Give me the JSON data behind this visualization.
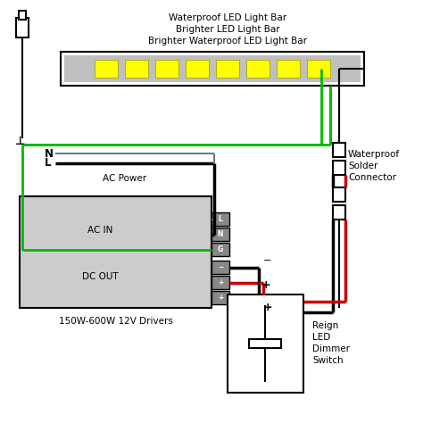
{
  "bg_color": "#ffffff",
  "line_color": "#000000",
  "green_color": "#00bb00",
  "red_color": "#cc0000",
  "led_bar_fill": "#c0c0c0",
  "led_color": "#ffff00",
  "driver_fill": "#cccccc",
  "title_lines": [
    "Waterproof LED Light Bar",
    "Brighter LED Light Bar",
    "Brighter Waterproof LED Light Bar"
  ],
  "driver_label": "150W-600W 12V Drivers",
  "ac_label": "AC Power",
  "connector_label": [
    "Waterproof",
    "Solder",
    "Connector"
  ],
  "dimmer_label": [
    "Reign",
    "LED",
    "Dimmer",
    "Switch"
  ],
  "ac_in_label": "AC IN",
  "dc_out_label": "DC OUT",
  "term_labels_ac": [
    "L",
    "N",
    "G"
  ],
  "term_labels_dc": [
    "−",
    "+",
    "+"
  ]
}
